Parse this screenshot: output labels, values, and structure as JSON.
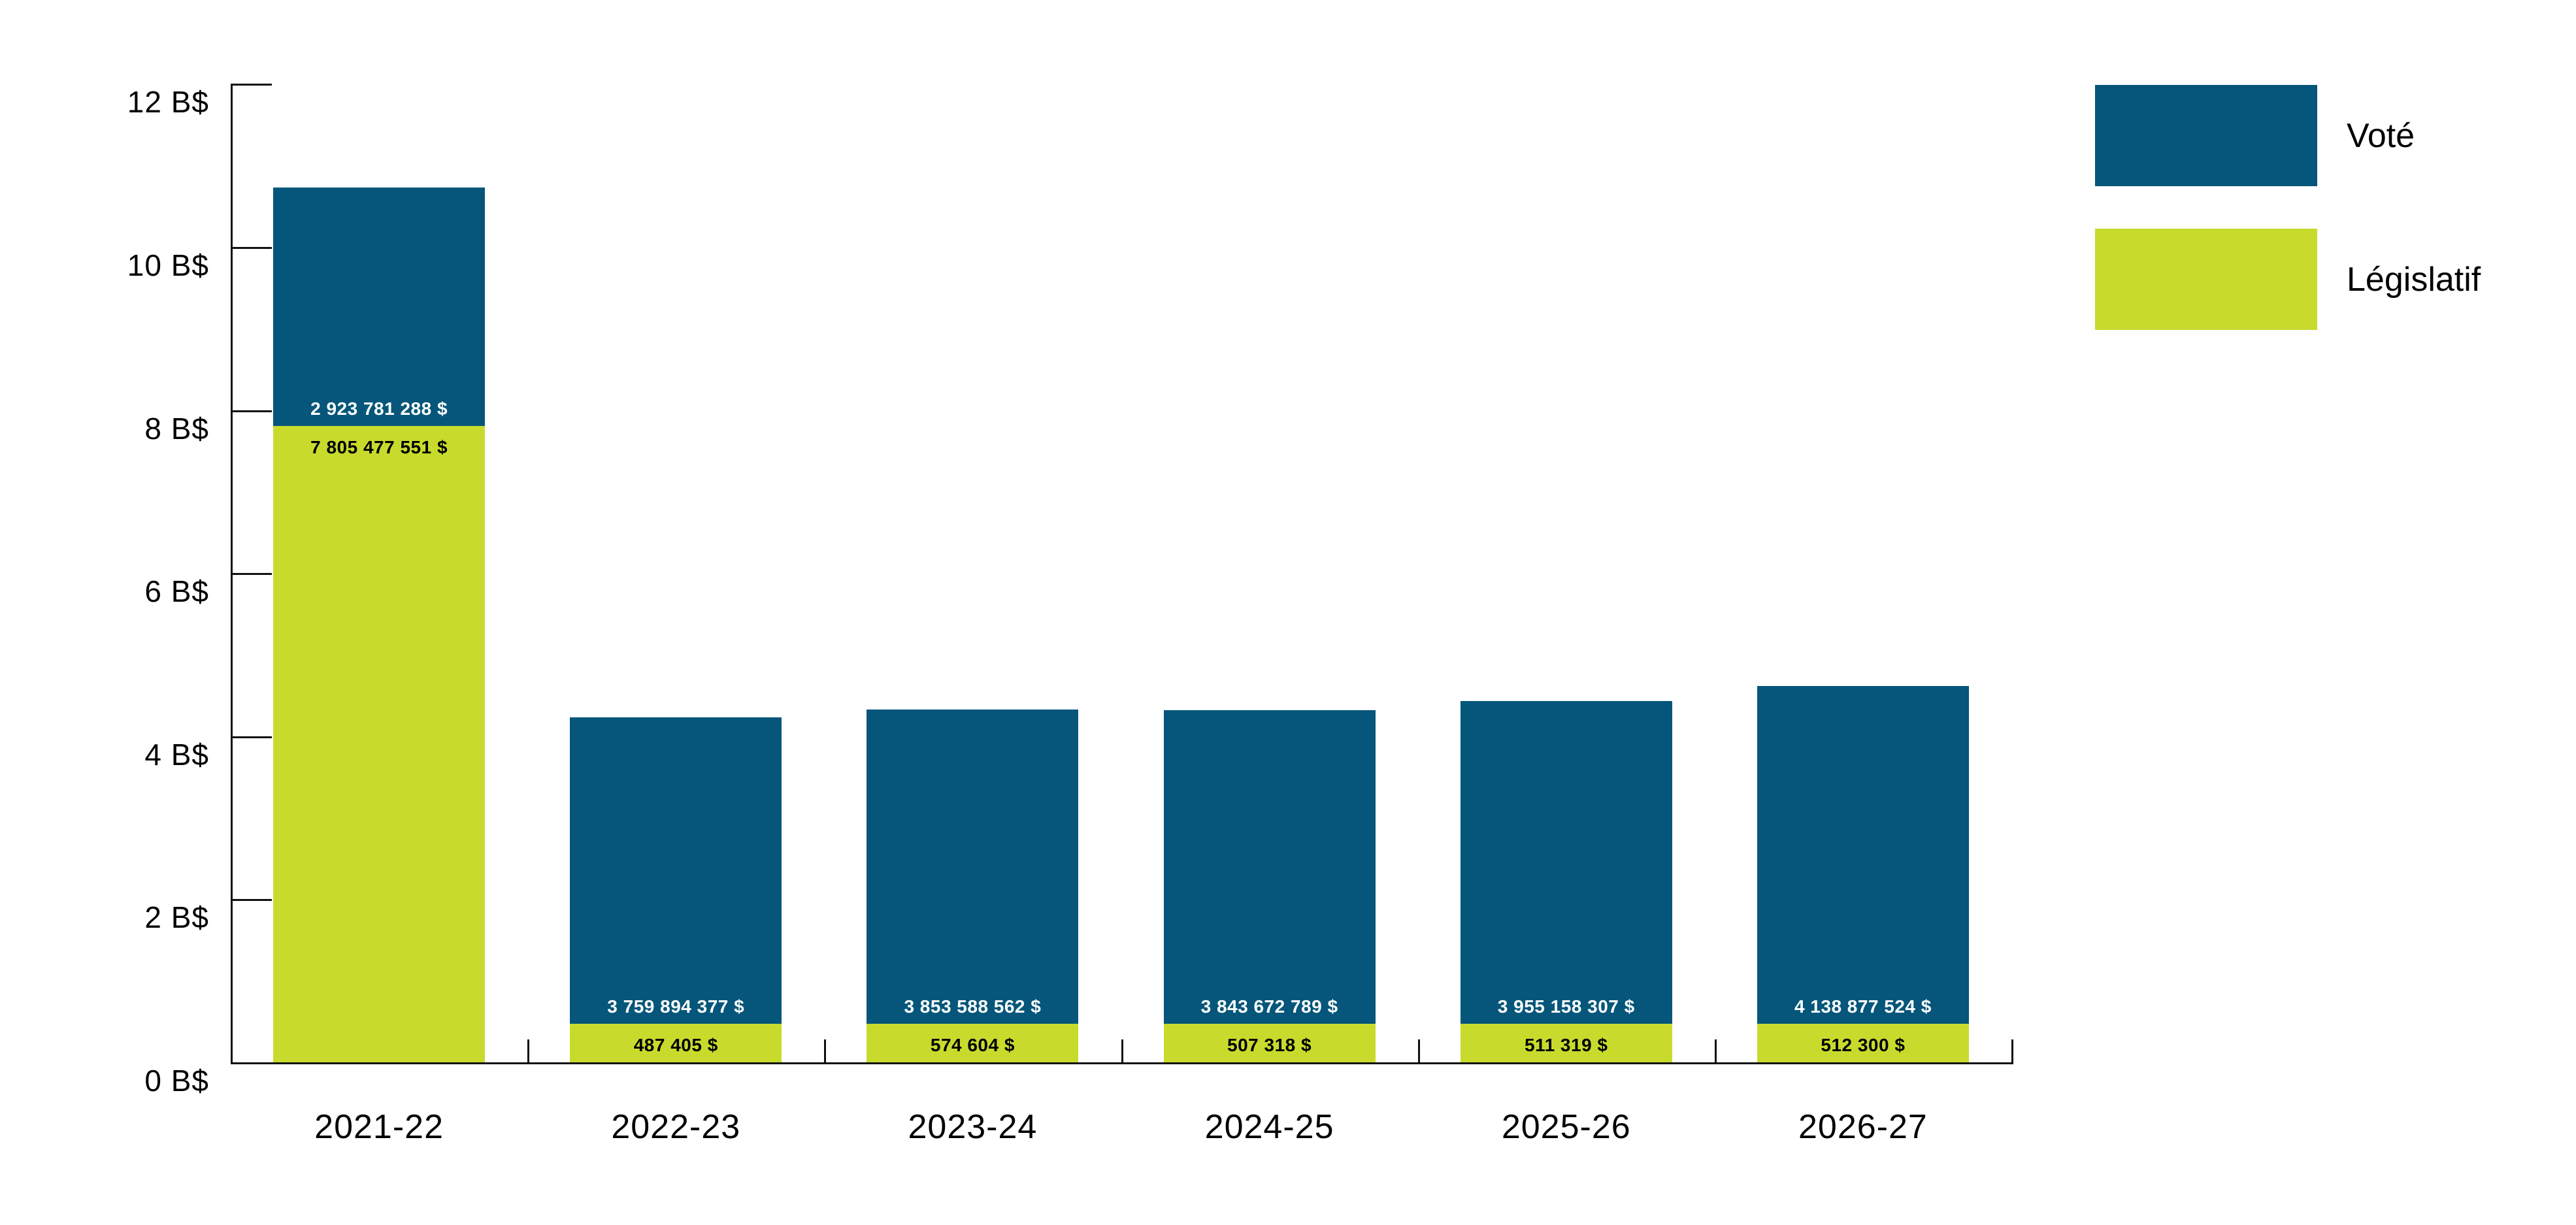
{
  "chart_data": {
    "type": "bar",
    "stacked": true,
    "title": "",
    "categories": [
      "2021-22",
      "2022-23",
      "2023-24",
      "2024-25",
      "2025-26",
      "2026-27"
    ],
    "series": [
      {
        "name": "Voté",
        "color": "#05567A",
        "label_color": "#ffffff",
        "stack_position": "top",
        "values": [
          2923781288,
          3759894377,
          3853588562,
          3843672789,
          3955158307,
          4138877524
        ],
        "labels": [
          "2 923 781 288 $",
          "3 759 894 377 $",
          "3 853 588 562 $",
          "3 843 672 789 $",
          "3 955 158 307 $",
          "4 138 877 524 $"
        ]
      },
      {
        "name": "Législatif",
        "color": "#C8DB2D",
        "label_color": "#000000",
        "stack_position": "bottom",
        "values": [
          7805477551,
          487405,
          574604,
          507318,
          511319,
          512300
        ],
        "labels": [
          "7 805 477 551 $",
          "487 405 $",
          "574 604 $",
          "507 318 $",
          "511 319 $",
          "512 300 $"
        ]
      }
    ],
    "y_axis": {
      "unit": "B$",
      "min": 0,
      "max": 12,
      "tick_step": 2,
      "tick_labels": [
        "0 B$",
        "2 B$",
        "4 B$",
        "6 B$",
        "8 B$",
        "10 B$",
        "12 B$"
      ]
    },
    "legend": {
      "position": "top-right",
      "items": [
        {
          "label": "Voté",
          "color": "#05567A"
        },
        {
          "label": "Législatif",
          "color": "#C8DB2D"
        }
      ]
    },
    "grid": "off"
  }
}
